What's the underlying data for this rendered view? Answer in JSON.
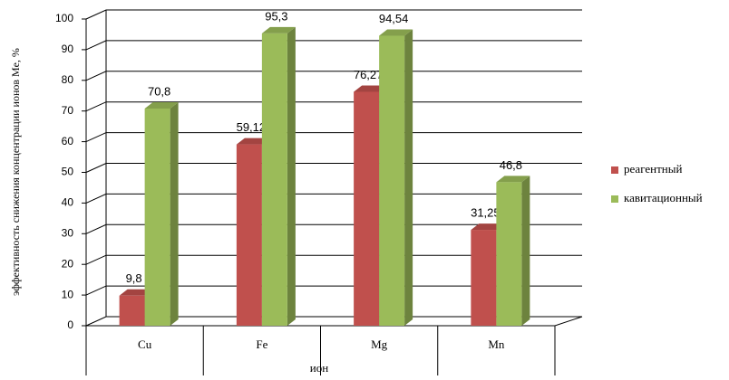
{
  "chart_data": {
    "type": "bar",
    "y_label": "эффективность снижения концентрации ионов Ме, %",
    "x_label": "ион",
    "categories": [
      "Cu",
      "Fe",
      "Mg",
      "Mn"
    ],
    "series": [
      {
        "name": "реагентный",
        "color": "#c0504d",
        "values": [
          9.8,
          59.12,
          76.27,
          31.25
        ],
        "value_labels": [
          "9,8",
          "59,12",
          "76,27",
          "31,25"
        ]
      },
      {
        "name": "кавитационный",
        "color": "#9bbb59",
        "values": [
          70.8,
          95.3,
          94.54,
          46.8
        ],
        "value_labels": [
          "70,8",
          "95,3",
          "94,54",
          "46,8"
        ]
      }
    ],
    "ylim": [
      0,
      100
    ],
    "yticks": [
      0,
      10,
      20,
      30,
      40,
      50,
      60,
      70,
      80,
      90,
      100
    ],
    "grid": true,
    "legend": "right"
  }
}
